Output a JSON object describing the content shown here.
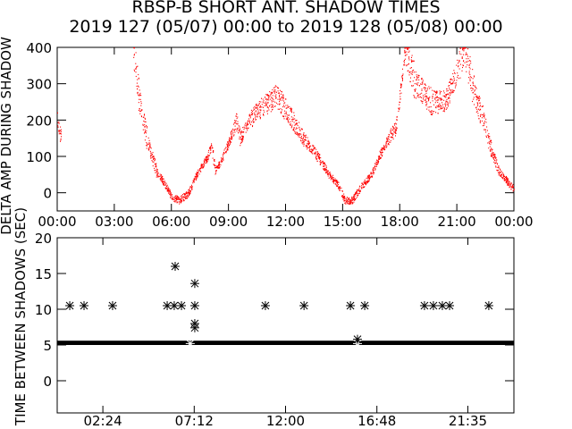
{
  "chart_data": [
    {
      "type": "scatter",
      "title": "RBSP-B SHORT ANT. SHADOW TIMES",
      "subtitle": "2019 127 (05/07) 00:00 to 2019 128 (05/08) 00:00",
      "xlabel": "",
      "ylabel": "DELTA AMP DURING SHADOW",
      "xlim": [
        0,
        24
      ],
      "ylim": [
        -50,
        400
      ],
      "xticks": [
        0,
        3,
        6,
        9,
        12,
        15,
        18,
        21,
        24
      ],
      "xtick_labels": [
        "00:00",
        "03:00",
        "06:00",
        "09:00",
        "12:00",
        "15:00",
        "18:00",
        "21:00",
        "00:00"
      ],
      "yticks": [
        0,
        100,
        200,
        300,
        400
      ],
      "ytick_labels": [
        "0",
        "100",
        "200",
        "300",
        "400"
      ],
      "color": "#ff0000",
      "series": [
        {
          "name": "delta amp",
          "x": [
            0.0,
            0.2,
            4.0,
            4.3,
            4.7,
            5.2,
            5.6,
            6.0,
            6.4,
            6.9,
            7.3,
            7.9,
            8.1,
            8.3,
            8.7,
            9.1,
            9.4,
            9.6,
            10.1,
            10.6,
            11.1,
            11.5,
            12.0,
            12.5,
            12.9,
            13.4,
            13.8,
            14.3,
            14.8,
            15.1,
            15.5,
            16.0,
            16.5,
            16.9,
            17.4,
            17.8,
            18.3,
            18.8,
            19.7,
            20.4,
            21.1,
            21.4,
            21.9,
            22.4,
            22.8,
            23.2,
            24.0
          ],
          "y": [
            200,
            150,
            400,
            260,
            150,
            60,
            30,
            -10,
            -20,
            0,
            50,
            100,
            130,
            60,
            100,
            150,
            200,
            150,
            200,
            230,
            250,
            270,
            230,
            190,
            150,
            120,
            90,
            50,
            20,
            -20,
            -20,
            20,
            50,
            100,
            150,
            180,
            400,
            300,
            250,
            250,
            350,
            400,
            270,
            200,
            120,
            60,
            10
          ]
        }
      ]
    },
    {
      "type": "scatter",
      "title": "",
      "xlabel": "",
      "ylabel": "TIME BETWEEN SHADOWS (SEC)",
      "xlim": [
        0,
        24
      ],
      "ylim": [
        -4.5,
        20
      ],
      "xticks": [
        2.4,
        7.2,
        12.0,
        16.8,
        21.58
      ],
      "xtick_labels": [
        "02:24",
        "07:12",
        "12:00",
        "16:48",
        "21:35"
      ],
      "yticks": [
        0,
        5,
        10,
        15,
        20
      ],
      "ytick_labels": [
        "0",
        "5",
        "10",
        "15",
        "20"
      ],
      "baseline_band": {
        "from": 5.0,
        "to": 5.6
      },
      "series": [
        {
          "name": "time between shadows",
          "x": [
            0.66,
            1.41,
            2.91,
            5.78,
            6.15,
            6.53,
            7.23,
            10.94,
            12.97,
            15.41,
            16.16,
            19.3,
            19.77,
            20.24,
            20.62,
            22.68,
            6.2,
            7.23,
            7.23,
            7.23,
            15.78
          ],
          "y": [
            10.5,
            10.5,
            10.5,
            10.5,
            10.5,
            10.5,
            10.5,
            10.5,
            10.5,
            10.5,
            10.5,
            10.5,
            10.5,
            10.5,
            10.5,
            10.5,
            16.0,
            13.6,
            8.0,
            7.4,
            5.8
          ]
        }
      ]
    }
  ]
}
